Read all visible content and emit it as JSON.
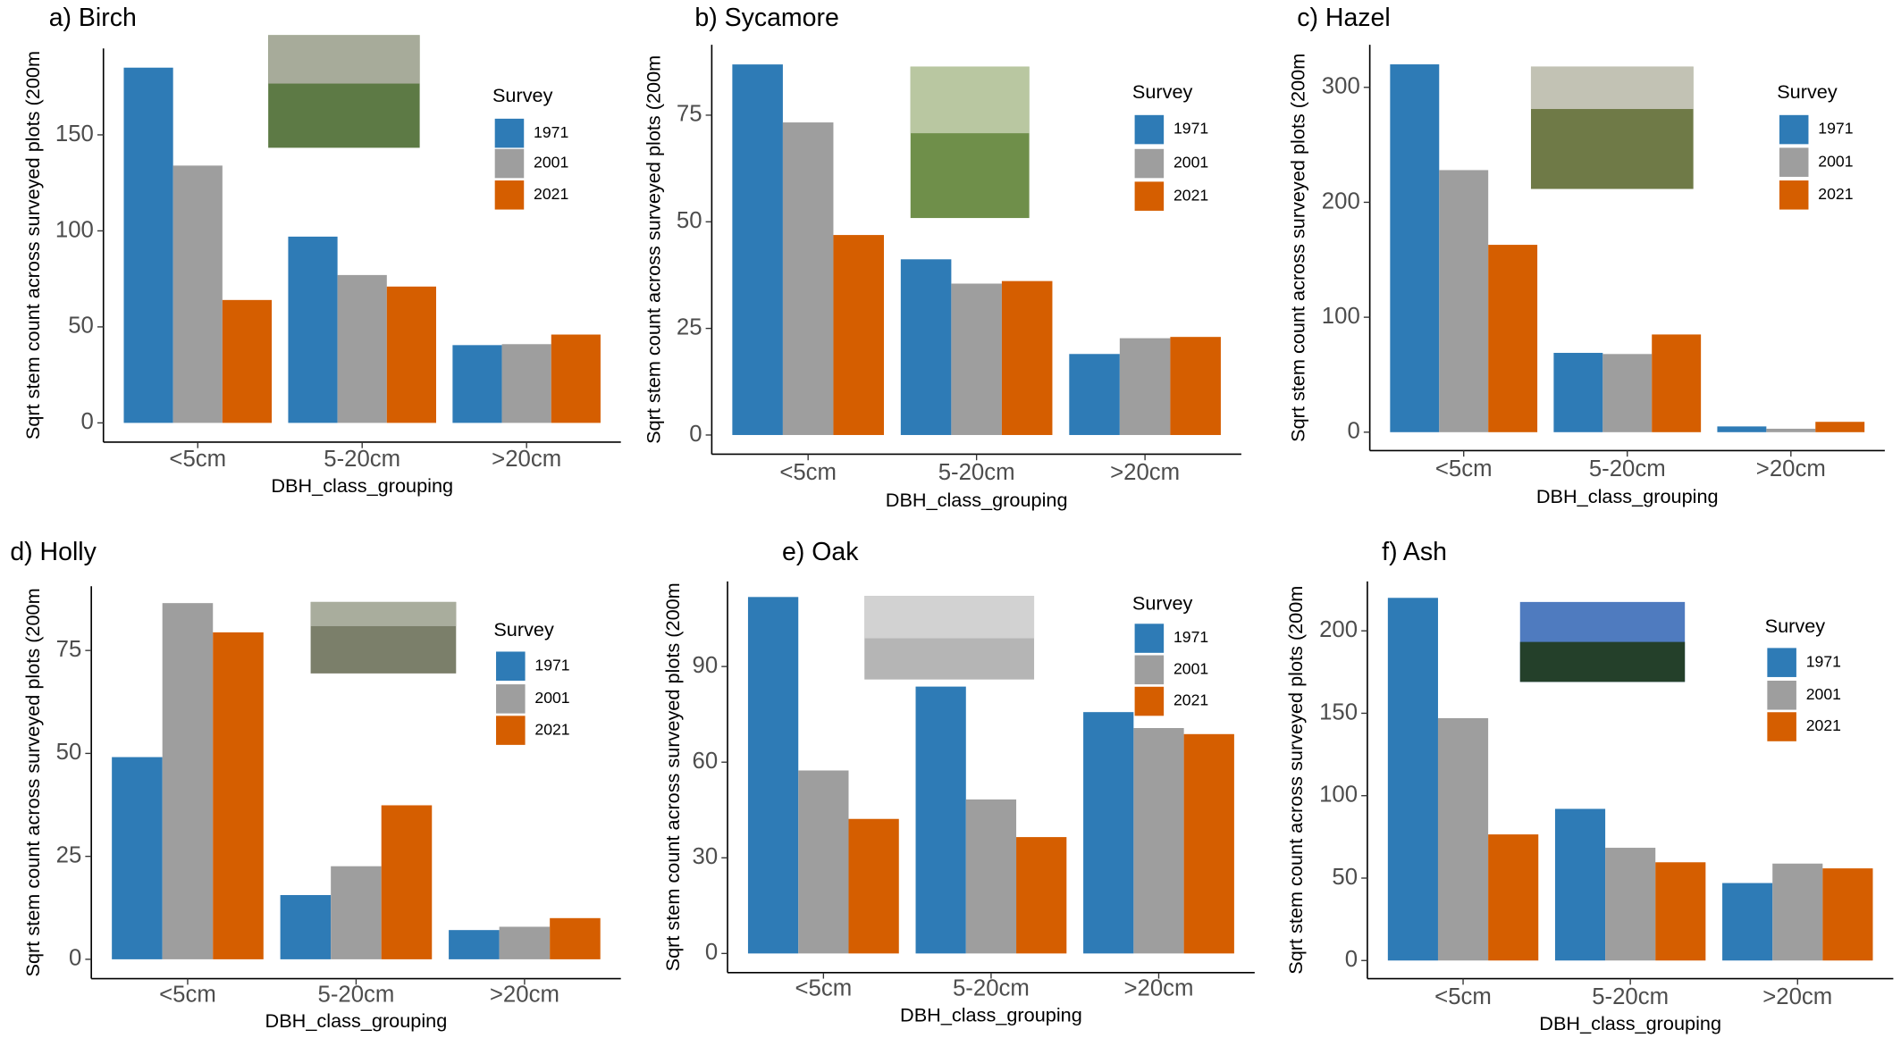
{
  "chart_data": [
    {
      "type": "bar",
      "title": "a) Birch",
      "xlabel": "DBH_class_grouping",
      "ylabel": "Sqrt stem count across surveyed plots (200m",
      "legend_title": "Survey",
      "categories": [
        "<5cm",
        "5-20cm",
        ">20cm"
      ],
      "series": [
        {
          "name": "1971",
          "color": "#2e7bb6",
          "values": [
            185,
            97,
            40.5
          ]
        },
        {
          "name": "2001",
          "color": "#9e9e9e",
          "values": [
            134,
            77,
            41
          ]
        },
        {
          "name": "2021",
          "color": "#d55e00",
          "values": [
            64,
            71,
            46
          ]
        }
      ],
      "ylim": [
        -10,
        195
      ],
      "yticks": [
        0,
        50,
        100,
        150
      ]
    },
    {
      "type": "bar",
      "title": "b) Sycamore",
      "xlabel": "DBH_class_grouping",
      "ylabel": "Sqrt stem count across surveyed plots (200m",
      "legend_title": "Survey",
      "categories": [
        "<5cm",
        "5-20cm",
        ">20cm"
      ],
      "series": [
        {
          "name": "1971",
          "color": "#2e7bb6",
          "values": [
            86.9,
            41.2,
            19
          ]
        },
        {
          "name": "2001",
          "color": "#9e9e9e",
          "values": [
            73.3,
            35.5,
            22.7
          ]
        },
        {
          "name": "2021",
          "color": "#d55e00",
          "values": [
            46.9,
            36.1,
            23
          ]
        }
      ],
      "ylim": [
        -4.5,
        91.5
      ],
      "yticks": [
        0,
        25,
        50,
        75
      ]
    },
    {
      "type": "bar",
      "title": "c) Hazel",
      "xlabel": "DBH_class_grouping",
      "ylabel": "Sqrt stem count across surveyed plots (200m",
      "legend_title": "Survey",
      "categories": [
        "<5cm",
        "5-20cm",
        ">20cm"
      ],
      "series": [
        {
          "name": "1971",
          "color": "#2e7bb6",
          "values": [
            320,
            69,
            5
          ]
        },
        {
          "name": "2001",
          "color": "#9e9e9e",
          "values": [
            228,
            68,
            3
          ]
        },
        {
          "name": "2021",
          "color": "#d55e00",
          "values": [
            163,
            85,
            9
          ]
        }
      ],
      "ylim": [
        -16,
        337
      ],
      "yticks": [
        0,
        100,
        200,
        300
      ]
    },
    {
      "type": "bar",
      "title": "d) Holly",
      "xlabel": "DBH_class_grouping",
      "ylabel": "Sqrt stem count across surveyed plots (200m",
      "legend_title": "Survey",
      "categories": [
        "<5cm",
        "5-20cm",
        ">20cm"
      ],
      "series": [
        {
          "name": "1971",
          "color": "#2e7bb6",
          "values": [
            49.1,
            15.6,
            7.1
          ]
        },
        {
          "name": "2001",
          "color": "#9e9e9e",
          "values": [
            86.5,
            22.6,
            7.9
          ]
        },
        {
          "name": "2021",
          "color": "#d55e00",
          "values": [
            79.4,
            37.4,
            10
          ]
        }
      ],
      "ylim": [
        -4.7,
        90.6
      ],
      "yticks": [
        0,
        25,
        50,
        75
      ]
    },
    {
      "type": "bar",
      "title": "e) Oak",
      "xlabel": "DBH_class_grouping",
      "ylabel": "Sqrt stem count across surveyed plots (200m",
      "legend_title": "Survey",
      "categories": [
        "<5cm",
        "5-20cm",
        ">20cm"
      ],
      "series": [
        {
          "name": "1971",
          "color": "#2e7bb6",
          "values": [
            111.8,
            83.7,
            75.7
          ]
        },
        {
          "name": "2001",
          "color": "#9e9e9e",
          "values": [
            57.4,
            48.3,
            70.7
          ]
        },
        {
          "name": "2021",
          "color": "#d55e00",
          "values": [
            42.2,
            36.5,
            68.8
          ]
        }
      ],
      "ylim": [
        -6,
        116.7
      ],
      "yticks": [
        0,
        30,
        60,
        90
      ]
    },
    {
      "type": "bar",
      "title": "f) Ash",
      "xlabel": "DBH_class_grouping",
      "ylabel": "Sqrt stem count across surveyed plots (200m",
      "legend_title": "Survey",
      "categories": [
        "<5cm",
        "5-20cm",
        ">20cm"
      ],
      "series": [
        {
          "name": "1971",
          "color": "#2e7bb6",
          "values": [
            220,
            92,
            47
          ]
        },
        {
          "name": "2001",
          "color": "#9e9e9e",
          "values": [
            147,
            68.4,
            58.8
          ]
        },
        {
          "name": "2021",
          "color": "#d55e00",
          "values": [
            76.5,
            59.6,
            55.9
          ]
        }
      ],
      "ylim": [
        -11,
        230
      ],
      "yticks": [
        0,
        50,
        100,
        150,
        200
      ]
    }
  ]
}
